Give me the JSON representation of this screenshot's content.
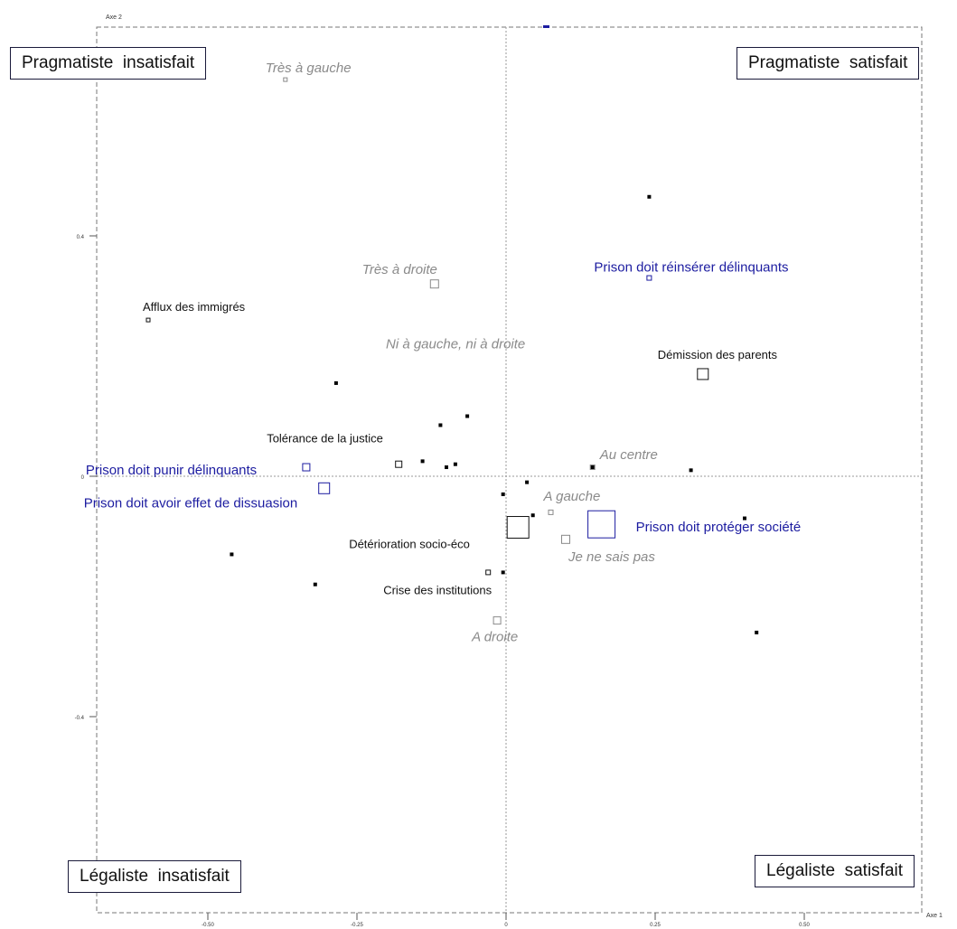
{
  "chart_data": {
    "type": "scatter",
    "xlabel": "Axe 1",
    "ylabel": "Axe 2",
    "xlim": [
      -0.68,
      0.7
    ],
    "ylim": [
      -0.7,
      0.75
    ],
    "x_ticks": [
      {
        "v": -0.5,
        "label": "-0.50"
      },
      {
        "v": -0.25,
        "label": "-0.25"
      },
      {
        "v": 0,
        "label": "0"
      },
      {
        "v": 0.25,
        "label": "0.25"
      },
      {
        "v": 0.5,
        "label": "0.50"
      }
    ],
    "y_ticks": [
      {
        "v": 0.4,
        "label": "0.4"
      },
      {
        "v": 0,
        "label": "0"
      },
      {
        "v": -0.4,
        "label": "-0.4"
      }
    ],
    "quadrants": {
      "top_left": "Pragmatiste  insatisfait",
      "top_right": "Pragmatiste  satisfait",
      "bottom_left": "Légaliste  insatisfait",
      "bottom_right": "Légaliste  satisfait"
    },
    "series": [
      {
        "group": "political",
        "color": "#8a8a8a",
        "italic": true,
        "points": [
          {
            "label": "Très à gauche",
            "x": -0.37,
            "y": 0.66,
            "size": 4
          },
          {
            "label": "Très à droite",
            "x": -0.12,
            "y": 0.32,
            "size": 9
          },
          {
            "label": "Ni à gauche, ni à droite",
            "x": 0.0,
            "y": 0.1,
            "size": 0
          },
          {
            "label": "Au centre",
            "x": 0.145,
            "y": 0.015,
            "size": 5
          },
          {
            "label": "A gauche",
            "x": 0.075,
            "y": -0.06,
            "size": 5
          },
          {
            "label": "Je ne sais pas",
            "x": 0.1,
            "y": -0.105,
            "size": 9
          },
          {
            "label": "A droite",
            "x": -0.015,
            "y": -0.24,
            "size": 8
          }
        ]
      },
      {
        "group": "causes",
        "color": "#111111",
        "italic": false,
        "points": [
          {
            "label": "Afflux des immigrés",
            "x": -0.6,
            "y": 0.26,
            "size": 4
          },
          {
            "label": "Démission des parents",
            "x": 0.33,
            "y": 0.17,
            "size": 12
          },
          {
            "label": "Tolérance de la justice",
            "x": -0.18,
            "y": 0.02,
            "size": 7
          },
          {
            "label": "Détérioration  socio-éco",
            "x": 0.02,
            "y": -0.085,
            "size": 24
          },
          {
            "label": "Crise des institutions",
            "x": -0.03,
            "y": -0.16,
            "size": 5
          }
        ]
      },
      {
        "group": "prison",
        "color": "#1c1ca0",
        "italic": false,
        "points": [
          {
            "label": "Prison doit réinsérer délinquants",
            "x": 0.24,
            "y": 0.33,
            "size": 5
          },
          {
            "label": "Prison doit punir délinquants",
            "x": -0.335,
            "y": 0.015,
            "size": 8
          },
          {
            "label": "Prison doit avoir effet de dissuasion",
            "x": -0.305,
            "y": -0.02,
            "size": 12
          },
          {
            "label": "Prison doit protéger société",
            "x": 0.16,
            "y": -0.08,
            "size": 30
          }
        ]
      },
      {
        "group": "individuals",
        "color": "#000000",
        "italic": false,
        "points": [
          {
            "x": 0.24,
            "y": 0.465
          },
          {
            "x": -0.285,
            "y": 0.155
          },
          {
            "x": -0.065,
            "y": 0.1
          },
          {
            "x": -0.11,
            "y": 0.085
          },
          {
            "x": -0.14,
            "y": 0.025
          },
          {
            "x": -0.1,
            "y": 0.015
          },
          {
            "x": -0.085,
            "y": 0.02
          },
          {
            "x": 0.145,
            "y": 0.015
          },
          {
            "x": 0.31,
            "y": 0.01
          },
          {
            "x": 0.035,
            "y": -0.01
          },
          {
            "x": -0.005,
            "y": -0.03
          },
          {
            "x": 0.045,
            "y": -0.065
          },
          {
            "x": 0.4,
            "y": -0.07
          },
          {
            "x": -0.46,
            "y": -0.13
          },
          {
            "x": -0.32,
            "y": -0.18
          },
          {
            "x": -0.005,
            "y": -0.16
          },
          {
            "x": 0.42,
            "y": -0.26
          }
        ]
      }
    ]
  }
}
